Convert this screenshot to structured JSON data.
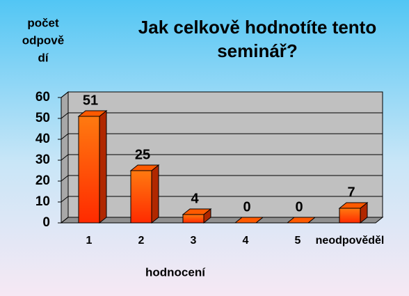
{
  "chart_data": {
    "type": "bar3d",
    "title": "Jak celkově hodnotíte tento seminář?",
    "ylabel": [
      "počet",
      "odpově",
      "dí"
    ],
    "xlabel": "hodnocení",
    "categories": [
      "1",
      "2",
      "3",
      "4",
      "5",
      "neodpověděl"
    ],
    "values": [
      51,
      25,
      4,
      0,
      0,
      7
    ],
    "color": "#ff5a00",
    "ylim": [
      0,
      60
    ],
    "yticks": [
      0,
      10,
      20,
      30,
      40,
      50,
      60
    ],
    "grid": true
  }
}
